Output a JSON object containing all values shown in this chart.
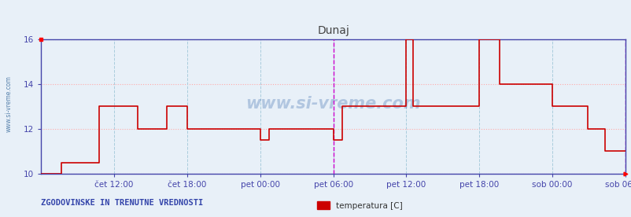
{
  "title": "Dunaj",
  "ylim": [
    10,
    16
  ],
  "yticks": [
    10,
    12,
    14,
    16
  ],
  "background_color": "#e8f0f8",
  "plot_bg_color": "#e8f0f8",
  "line_color": "#cc0000",
  "grid_h_color": "#ffaaaa",
  "grid_v_color": "#aaccdd",
  "x_labels": [
    "čet 12:00",
    "čet 18:00",
    "pet 00:00",
    "pet 06:00",
    "pet 12:00",
    "pet 18:00",
    "sob 00:00",
    "sob 06:00"
  ],
  "x_positions": [
    0.125,
    0.25,
    0.375,
    0.5,
    0.625,
    0.75,
    0.875,
    1.0
  ],
  "watermark": "www.si-vreme.com",
  "legend_label": "temperatura [C]",
  "legend_color": "#cc0000",
  "footer_text": "ZGODOVINSKE IN TRENUTNE VREDNOSTI",
  "title_color": "#444444",
  "axis_color": "#4444aa",
  "tick_color": "#4444aa",
  "left_label": "www.si-vreme.com",
  "magenta_vline": 0.5,
  "magenta_vline2": 1.0,
  "time_steps": [
    0.0,
    0.035,
    0.035,
    0.1,
    0.1,
    0.165,
    0.165,
    0.215,
    0.215,
    0.25,
    0.25,
    0.375,
    0.375,
    0.39,
    0.39,
    0.5,
    0.5,
    0.515,
    0.515,
    0.625,
    0.625,
    0.637,
    0.637,
    0.75,
    0.75,
    0.785,
    0.785,
    0.875,
    0.875,
    0.935,
    0.935,
    0.965,
    0.965,
    1.0
  ],
  "temp_values": [
    10.0,
    10.0,
    10.5,
    10.5,
    13.0,
    13.0,
    12.0,
    12.0,
    13.0,
    13.0,
    12.0,
    12.0,
    11.5,
    11.5,
    12.0,
    12.0,
    11.5,
    11.5,
    13.0,
    13.0,
    16.0,
    16.0,
    13.0,
    13.0,
    16.0,
    16.0,
    14.0,
    14.0,
    13.0,
    13.0,
    12.0,
    12.0,
    11.0,
    11.0
  ]
}
